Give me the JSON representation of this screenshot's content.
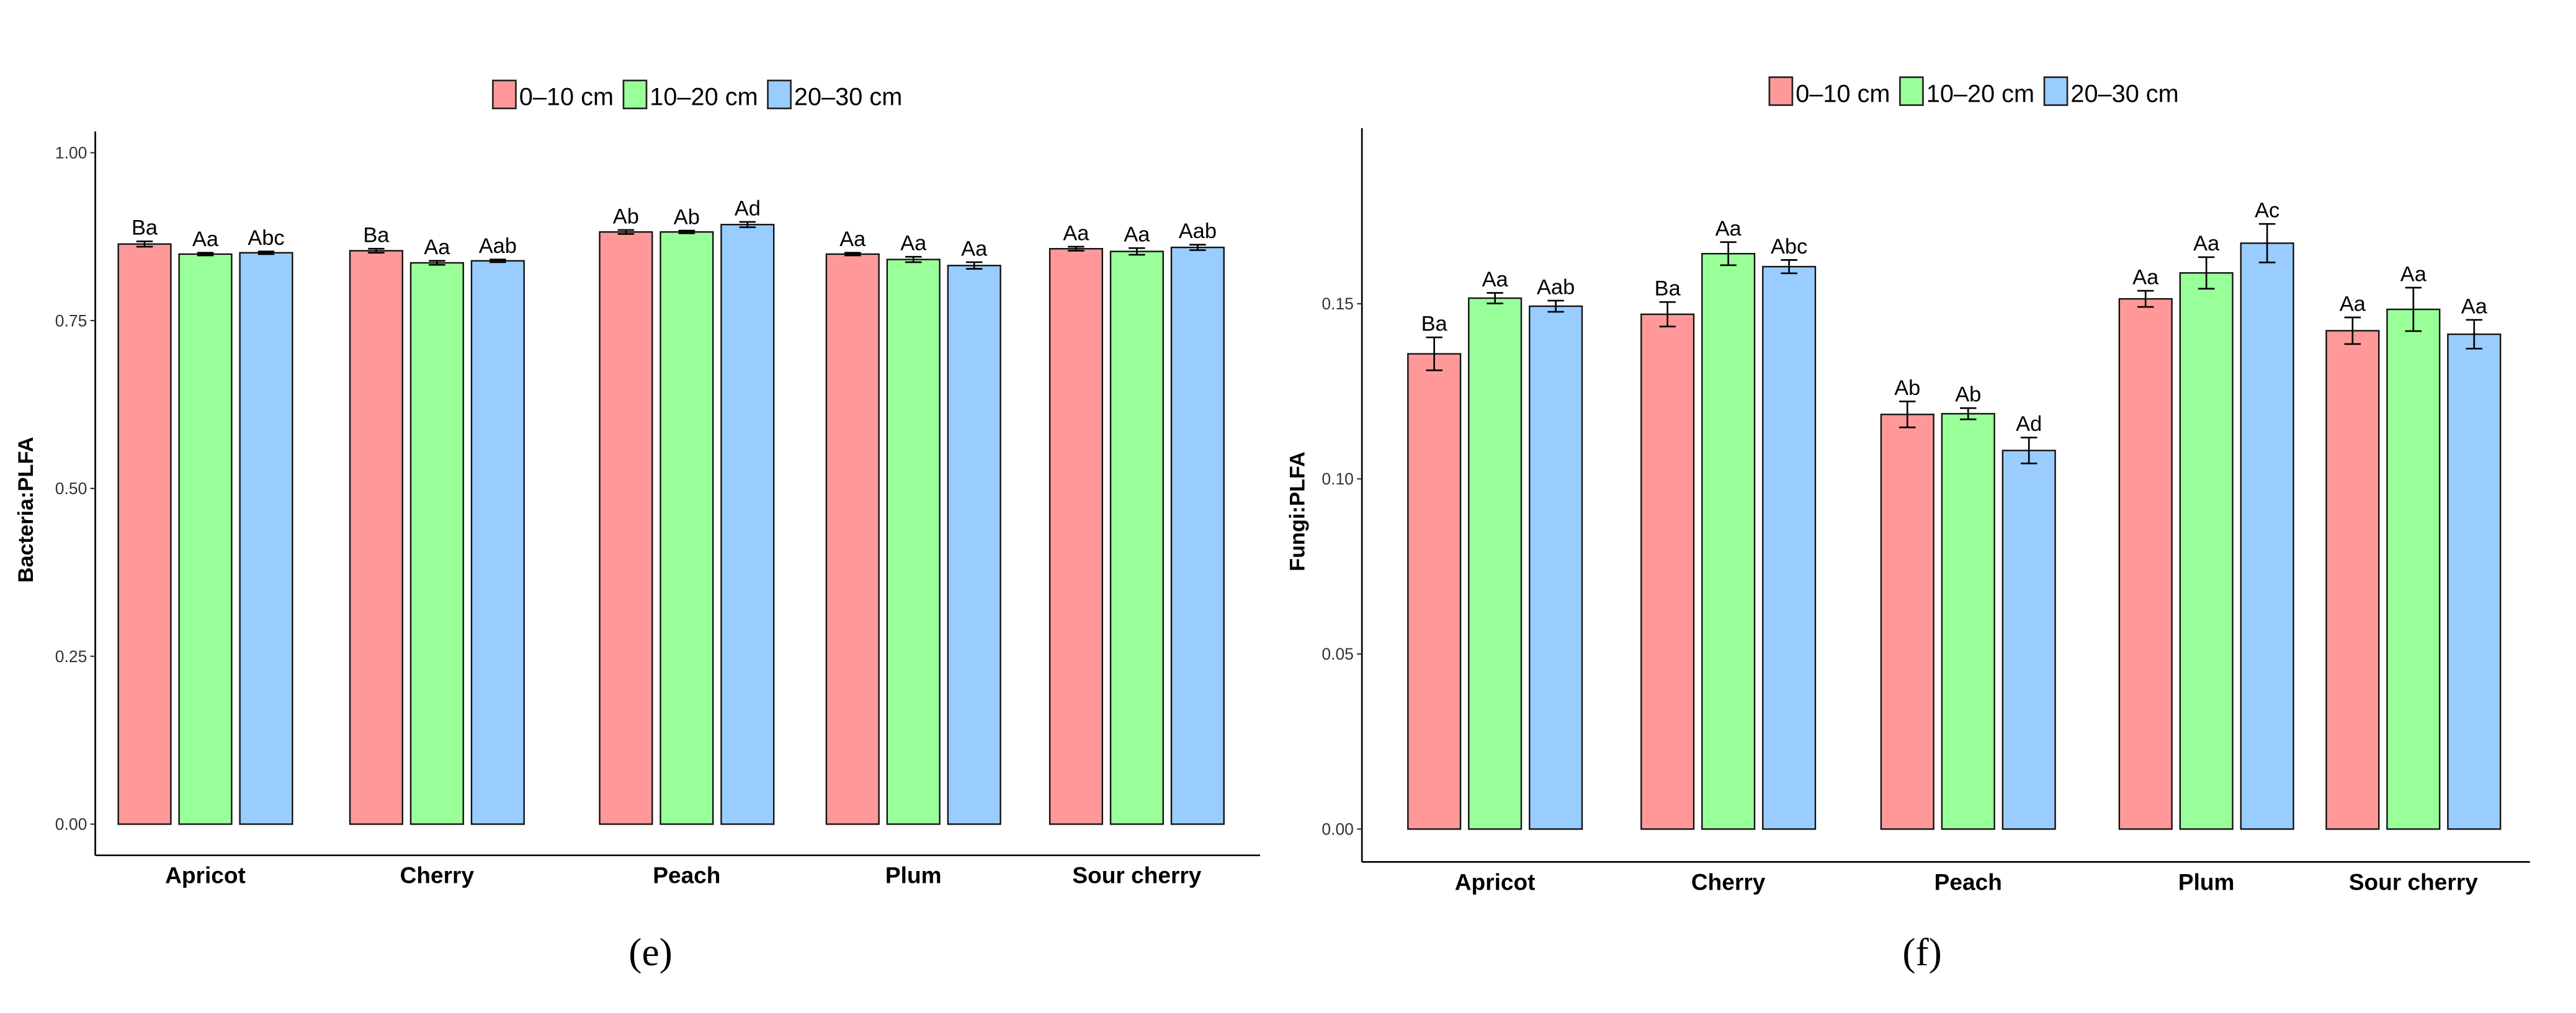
{
  "legend": {
    "entries": [
      "0–10 cm",
      "10–20 cm",
      "20–30 cm"
    ],
    "colors": [
      "#FF9999",
      "#99FF99",
      "#99CCFF"
    ]
  },
  "chart_data": [
    {
      "type": "bar",
      "panel_label": "(e)",
      "ylabel": "Bacteria:PLFA",
      "xlabel": "",
      "ylim": [
        0,
        1.0
      ],
      "yticks": [
        "0.00",
        "0.25",
        "0.50",
        "0.75",
        "1.00"
      ],
      "ytick_values": [
        0,
        0.25,
        0.5,
        0.75,
        1.0
      ],
      "grid": false,
      "legend_position": "top",
      "categories": [
        "Apricot",
        "Cherry",
        "Peach",
        "Plum",
        "Sour cherry"
      ],
      "series": [
        {
          "name": "0–10 cm",
          "values": [
            0.864,
            0.854,
            0.882,
            0.849,
            0.857
          ],
          "errors": [
            0.004,
            0.003,
            0.003,
            0.002,
            0.003
          ],
          "letters": [
            "Ba",
            "Ba",
            "Ab",
            "Aa",
            "Aa"
          ]
        },
        {
          "name": "10–20 cm",
          "values": [
            0.849,
            0.836,
            0.882,
            0.841,
            0.853
          ],
          "errors": [
            0.002,
            0.003,
            0.002,
            0.004,
            0.005
          ],
          "letters": [
            "Aa",
            "Aa",
            "Ab",
            "Aa",
            "Aa"
          ]
        },
        {
          "name": "20–30 cm",
          "values": [
            0.851,
            0.839,
            0.893,
            0.832,
            0.859
          ],
          "errors": [
            0.002,
            0.002,
            0.004,
            0.005,
            0.004
          ],
          "letters": [
            "Abc",
            "Aab",
            "Ad",
            "Aa",
            "Aab"
          ]
        }
      ]
    },
    {
      "type": "bar",
      "panel_label": "(f)",
      "ylabel": "Fungi:PLFA",
      "xlabel": "",
      "ylim": [
        0,
        0.19
      ],
      "yticks": [
        "0.00",
        "0.05",
        "0.10",
        "0.15"
      ],
      "ytick_values": [
        0,
        0.05,
        0.1,
        0.15
      ],
      "grid": false,
      "legend_position": "top",
      "categories": [
        "Apricot",
        "Cherry",
        "Peach",
        "Plum",
        "Sour cherry"
      ],
      "series": [
        {
          "name": "0–10 cm",
          "values": [
            0.1357,
            0.147,
            0.1184,
            0.1514,
            0.1423
          ],
          "errors": [
            0.0047,
            0.0035,
            0.0037,
            0.0023,
            0.0038
          ],
          "letters": [
            "Ba",
            "Ba",
            "Ab",
            "Aa",
            "Aa"
          ]
        },
        {
          "name": "10–20 cm",
          "values": [
            0.1516,
            0.1643,
            0.1186,
            0.1588,
            0.1484
          ],
          "errors": [
            0.0015,
            0.0033,
            0.0016,
            0.0045,
            0.0062
          ],
          "letters": [
            "Aa",
            "Aa",
            "Ab",
            "Aa",
            "Aa"
          ]
        },
        {
          "name": "20–30 cm",
          "values": [
            0.1493,
            0.1606,
            0.1081,
            0.1673,
            0.1413
          ],
          "errors": [
            0.0016,
            0.0019,
            0.0037,
            0.0055,
            0.0041
          ],
          "letters": [
            "Aab",
            "Abc",
            "Ad",
            "Ac",
            "Aa"
          ]
        }
      ]
    }
  ]
}
